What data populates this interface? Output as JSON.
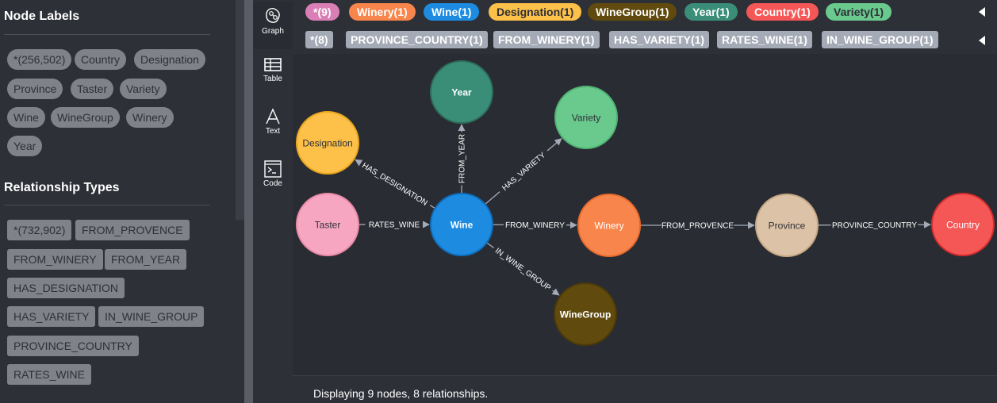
{
  "sidebar": {
    "node_labels_title": "Node Labels",
    "node_labels": [
      "*(256,502)",
      "Country",
      "Designation",
      "Province",
      "Taster",
      "Variety",
      "Wine",
      "WineGroup",
      "Winery",
      "Year"
    ],
    "relationship_types_title": "Relationship Types",
    "relationship_types": [
      "*(732,902)",
      "FROM_PROVENCE",
      "FROM_WINERY",
      "FROM_YEAR",
      "HAS_DESIGNATION",
      "HAS_VARIETY",
      "IN_WINE_GROUP",
      "PROVINCE_COUNTRY",
      "RATES_WINE"
    ]
  },
  "vnav": [
    {
      "label": "Graph",
      "icon": "graph-icon",
      "active": true
    },
    {
      "label": "Table",
      "icon": "table-icon",
      "active": false
    },
    {
      "label": "Text",
      "icon": "text-icon",
      "active": false
    },
    {
      "label": "Code",
      "icon": "code-icon",
      "active": false
    }
  ],
  "legend": {
    "nodes": [
      {
        "label": "*(9)",
        "color": "#da7fb6",
        "text_color": "#ffffff"
      },
      {
        "label": "Winery(1)",
        "color": "#f8854c",
        "text_color": "#ffffff"
      },
      {
        "label": "Wine(1)",
        "color": "#1c8be0",
        "text_color": "#ffffff"
      },
      {
        "label": "Designation(1)",
        "color": "#fdc048",
        "text_color": "#2e3038"
      },
      {
        "label": "WineGroup(1)",
        "color": "#604a0e",
        "text_color": "#ffffff"
      },
      {
        "label": "Year(1)",
        "color": "#3a8e77",
        "text_color": "#ffffff"
      },
      {
        "label": "Country(1)",
        "color": "#f55656",
        "text_color": "#ffffff"
      },
      {
        "label": "Variety(1)",
        "color": "#6ac98d",
        "text_color": "#2e3038"
      }
    ],
    "relationships": [
      "*(8)",
      "PROVINCE_COUNTRY(1)",
      "FROM_WINERY(1)",
      "HAS_VARIETY(1)",
      "RATES_WINE(1)",
      "IN_WINE_GROUP(1)"
    ]
  },
  "graph": {
    "nodes": [
      {
        "id": "year",
        "label": "Year",
        "color": "#3a8e77",
        "stroke": "#2c6d5a",
        "text_color": "#ffffff",
        "bold": true
      },
      {
        "id": "variety",
        "label": "Variety",
        "color": "#6ac98d",
        "stroke": "#4fb473",
        "text_color": "#2e3038",
        "bold": false
      },
      {
        "id": "designation",
        "label": "Designation",
        "color": "#fdc048",
        "stroke": "#e8a71d",
        "text_color": "#2e3038",
        "bold": false
      },
      {
        "id": "taster",
        "label": "Taster",
        "color": "#f6a6c0",
        "stroke": "#e889a7",
        "text_color": "#2e3038",
        "bold": false
      },
      {
        "id": "wine",
        "label": "Wine",
        "color": "#1c8be0",
        "stroke": "#0e6fbd",
        "text_color": "#ffffff",
        "bold": true
      },
      {
        "id": "winery",
        "label": "Winery",
        "color": "#f8854c",
        "stroke": "#e66a2c",
        "text_color": "#ffffff",
        "bold": false
      },
      {
        "id": "province",
        "label": "Province",
        "color": "#dcc2a6",
        "stroke": "#c5a884",
        "text_color": "#2e3038",
        "bold": false
      },
      {
        "id": "country",
        "label": "Country",
        "color": "#f55656",
        "stroke": "#d42d2d",
        "text_color": "#ffffff",
        "bold": false
      },
      {
        "id": "winegroup",
        "label": "WineGroup",
        "color": "#604a0e",
        "stroke": "#4a3908",
        "text_color": "#ffffff",
        "bold": true
      }
    ],
    "relationships": [
      {
        "from": "wine",
        "to": "year",
        "label": "FROM_YEAR"
      },
      {
        "from": "wine",
        "to": "variety",
        "label": "HAS_VARIETY"
      },
      {
        "from": "wine",
        "to": "designation",
        "label": "HAS_DESIGNATION"
      },
      {
        "from": "taster",
        "to": "wine",
        "label": "RATES_WINE"
      },
      {
        "from": "wine",
        "to": "winery",
        "label": "FROM_WINERY"
      },
      {
        "from": "winery",
        "to": "province",
        "label": "FROM_PROVENCE"
      },
      {
        "from": "province",
        "to": "country",
        "label": "PROVINCE_COUNTRY"
      },
      {
        "from": "wine",
        "to": "winegroup",
        "label": "IN_WINE_GROUP"
      }
    ]
  },
  "status": {
    "text": "Displaying 9 nodes, 8 relationships."
  }
}
